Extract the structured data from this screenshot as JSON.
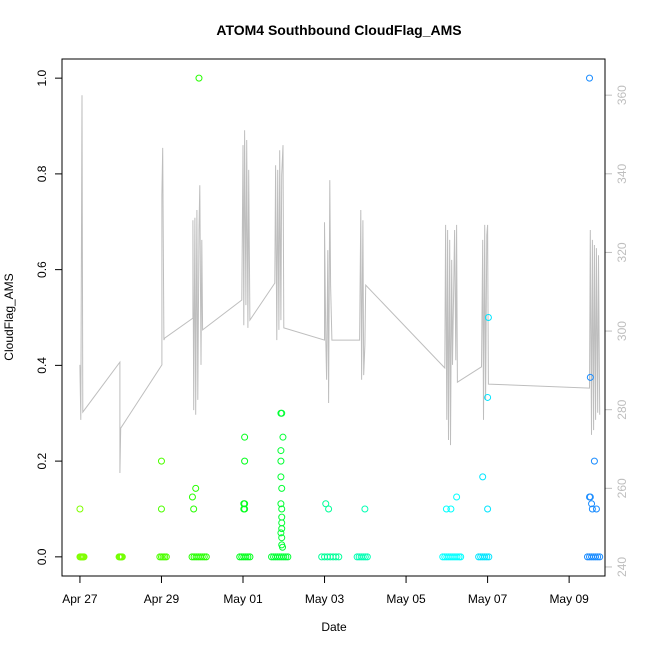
{
  "chart_data": {
    "type": "scatter",
    "title": "ATOM4 Southbound CloudFlag_AMS",
    "x_label": "Date",
    "y_label": "CloudFlag_AMS",
    "xlim": [
      -0.44,
      12.88
    ],
    "ylim": [
      -0.04,
      1.04
    ],
    "y2lim": [
      237.7,
      369.2
    ],
    "xticks": [
      {
        "value": 0,
        "label": "Apr 27"
      },
      {
        "value": 2,
        "label": "Apr 29"
      },
      {
        "value": 4,
        "label": "May 01"
      },
      {
        "value": 6,
        "label": "May 03"
      },
      {
        "value": 8,
        "label": "May 05"
      },
      {
        "value": 10,
        "label": "May 07"
      },
      {
        "value": 12,
        "label": "May 09"
      }
    ],
    "yticks": [
      {
        "value": 0,
        "label": "0.0"
      },
      {
        "value": 0.2,
        "label": "0.2"
      },
      {
        "value": 0.4,
        "label": "0.4"
      },
      {
        "value": 0.6,
        "label": "0.6"
      },
      {
        "value": 0.8,
        "label": "0.8"
      },
      {
        "value": 1,
        "label": "1.0"
      }
    ],
    "y2ticks": [
      240,
      260,
      280,
      300,
      320,
      340,
      360
    ],
    "series": [
      {
        "type": "line",
        "axis": "y2",
        "color": "#bebebe",
        "x": [
          0.0,
          0.02,
          0.05,
          0.07,
          0.98,
          0.98,
          1.0,
          2.01,
          2.01,
          2.03,
          2.06,
          2.08,
          2.77,
          2.77,
          2.79,
          2.82,
          2.84,
          2.87,
          2.89,
          2.92,
          2.94,
          2.97,
          2.99,
          3.01,
          3.97,
          4.0,
          4.02,
          4.04,
          4.07,
          4.09,
          4.12,
          4.14,
          4.17,
          4.78,
          4.8,
          4.83,
          4.85,
          4.88,
          4.9,
          4.93,
          4.95,
          4.98,
          5.0,
          6.0,
          6.0,
          6.03,
          6.05,
          6.08,
          6.1,
          6.13,
          6.15,
          6.18,
          6.86,
          6.89,
          6.91,
          6.94,
          6.96,
          6.99,
          7.01,
          8.95,
          8.97,
          9.0,
          9.02,
          9.04,
          9.07,
          9.09,
          9.12,
          9.14,
          9.19,
          9.22,
          9.24,
          9.26,
          9.85,
          9.88,
          9.9,
          9.93,
          9.95,
          9.98,
          10.0,
          10.02,
          12.5,
          12.52,
          12.55,
          12.57,
          12.6,
          12.62,
          12.65,
          12.67,
          12.7,
          12.72,
          12.75
        ],
        "values": [
          291.4,
          277.4,
          360.0,
          279.4,
          292.1,
          263.9,
          275.3,
          291.4,
          334.6,
          346.6,
          297.7,
          298.2,
          303.3,
          328.2,
          279.9,
          328.8,
          278.7,
          330.8,
          282.5,
          325.7,
          337.1,
          291.4,
          323.2,
          300.3,
          307.9,
          347.3,
          301.5,
          351.1,
          306.6,
          348.6,
          300.8,
          341.0,
          302.8,
          312.2,
          342.2,
          297.7,
          341.0,
          300.3,
          346.0,
          302.8,
          339.7,
          347.3,
          300.8,
          297.7,
          327.7,
          297.7,
          287.6,
          320.6,
          281.7,
          338.4,
          311.7,
          297.7,
          297.7,
          330.8,
          287.6,
          328.2,
          288.8,
          296.5,
          311.7,
          290.6,
          327.0,
          277.4,
          325.7,
          272.3,
          323.2,
          271.0,
          318.1,
          291.4,
          325.7,
          292.6,
          327.0,
          287.0,
          290.9,
          323.2,
          277.4,
          327.0,
          282.5,
          324.4,
          327.0,
          286.5,
          285.5,
          325.7,
          273.6,
          323.2,
          274.8,
          321.9,
          277.4,
          321.1,
          279.2,
          319.3,
          278.7
        ]
      },
      {
        "color": "#80ff00",
        "x": [
          0,
          0.02,
          0.04,
          0.06,
          0.08,
          0.1,
          0
        ],
        "values": [
          0,
          0,
          0,
          0,
          0,
          0,
          0.1
        ]
      },
      {
        "color": "#73ff00",
        "x": [
          0.96,
          0.98,
          1.0,
          1.02,
          1.04
        ],
        "values": [
          0,
          0,
          0,
          0,
          0
        ]
      },
      {
        "color": "#4dff00",
        "x": [
          1.96,
          2.0,
          2.04,
          2.08,
          2.12,
          2.0,
          2.0
        ],
        "values": [
          0,
          0,
          0,
          0,
          0,
          0.1,
          0.2
        ]
      },
      {
        "color": "#26ff00",
        "x": [
          2.75,
          2.8,
          2.85,
          2.9,
          2.95,
          3.0,
          3.05,
          3.1,
          2.79,
          2.76,
          2.84,
          2.92
        ],
        "values": [
          0,
          0,
          0,
          0,
          0,
          0,
          0,
          0,
          0.1,
          0.125,
          0.143,
          1.0
        ]
      },
      {
        "color": "#00ff1a",
        "x": [
          3.92,
          3.97,
          4.02,
          4.07,
          4.12,
          4.17,
          4.02,
          4.04,
          4.04,
          4.04,
          4.04,
          4.02
        ],
        "values": [
          0,
          0,
          0,
          0,
          0,
          0,
          0.1,
          0.1,
          0.111,
          0.2,
          0.25,
          0.111
        ]
      },
      {
        "color": "#00ff33",
        "x": [
          4.7,
          4.75,
          4.8,
          4.85,
          4.9,
          4.95,
          5.0,
          5.05,
          5.1,
          4.93,
          4.95,
          4.98,
          4.93,
          4.93,
          4.93,
          4.95,
          4.93,
          4.95,
          4.95,
          4.95,
          4.95,
          4.93,
          4.95,
          4.95,
          4.97
        ],
        "values": [
          0,
          0,
          0,
          0,
          0,
          0,
          0,
          0,
          0,
          0.3,
          0.3,
          0.25,
          0.222,
          0.2,
          0.167,
          0.143,
          0.111,
          0.1,
          0.083,
          0.071,
          0.059,
          0.05,
          0.04,
          0.025,
          0.02
        ]
      },
      {
        "color": "#00ff99",
        "x": [
          5.93,
          6.0,
          6.07,
          6.14,
          6.21,
          6.28,
          6.35,
          6.03,
          6.1
        ],
        "values": [
          0,
          0,
          0,
          0,
          0,
          0,
          0,
          0.111,
          0.1
        ]
      },
      {
        "color": "#00ffb3",
        "x": [
          6.8,
          6.85,
          6.9,
          6.95,
          7.0,
          7.05,
          6.99
        ],
        "values": [
          0,
          0,
          0,
          0,
          0,
          0,
          0.1
        ]
      },
      {
        "color": "#00ffff",
        "x": [
          8.9,
          8.95,
          9.0,
          9.05,
          9.1,
          9.15,
          9.2,
          9.25,
          9.3,
          9.34,
          8.99,
          9.1,
          9.24
        ],
        "values": [
          0,
          0,
          0,
          0,
          0,
          0,
          0,
          0,
          0,
          0,
          0.1,
          0.1,
          0.125
        ]
      },
      {
        "color": "#00e5ff",
        "x": [
          9.78,
          9.83,
          9.88,
          9.93,
          9.98,
          10.03,
          9.88,
          10.0,
          10.0,
          10.02
        ],
        "values": [
          0,
          0,
          0,
          0,
          0,
          0,
          0.167,
          0.1,
          0.333,
          0.5
        ]
      },
      {
        "color": "#1a8cff",
        "x": [
          12.45,
          12.5,
          12.55,
          12.6,
          12.65,
          12.7,
          12.75,
          12.5,
          12.52,
          12.62,
          12.5,
          12.52,
          12.55,
          12.57,
          12.67
        ],
        "values": [
          0,
          0,
          0,
          0,
          0,
          0,
          0,
          1.0,
          0.375,
          0.2,
          0.125,
          0.125,
          0.111,
          0.1,
          0.1
        ]
      }
    ]
  }
}
